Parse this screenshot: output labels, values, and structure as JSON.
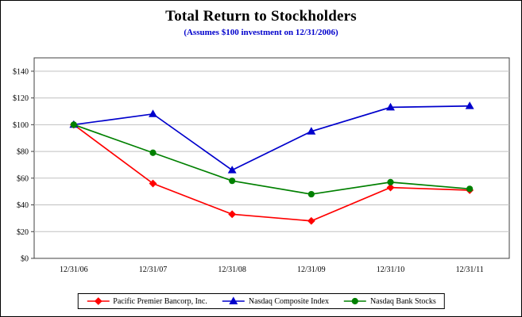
{
  "chart_data": {
    "type": "line",
    "title": "Total Return to Stockholders",
    "subtitle": "(Assumes $100 investment on 12/31/2006)",
    "categories": [
      "12/31/06",
      "12/31/07",
      "12/31/08",
      "12/31/09",
      "12/31/10",
      "12/31/11"
    ],
    "series": [
      {
        "name": "Pacific Premier Bancorp, Inc.",
        "color": "#ff0000",
        "marker": "diamond",
        "values": [
          100,
          56,
          33,
          28,
          53,
          51
        ]
      },
      {
        "name": "Nasdaq Composite Index",
        "color": "#0000cc",
        "marker": "triangle",
        "values": [
          100,
          108,
          66,
          95,
          113,
          114
        ]
      },
      {
        "name": "Nasdaq Bank Stocks",
        "color": "#008000",
        "marker": "circle",
        "values": [
          100,
          79,
          58,
          48,
          57,
          52
        ]
      }
    ],
    "ylim": [
      0,
      150
    ],
    "ytick_values": [
      0,
      20,
      40,
      60,
      80,
      100,
      120,
      140
    ],
    "ytick_labels": [
      "$0",
      "$20",
      "$40",
      "$60",
      "$80",
      "$100",
      "$120",
      "$140"
    ],
    "grid": "horizontal",
    "gridline_color": "#c0c0c0",
    "plot_border_color": "#404040",
    "legend_position": "bottom"
  }
}
